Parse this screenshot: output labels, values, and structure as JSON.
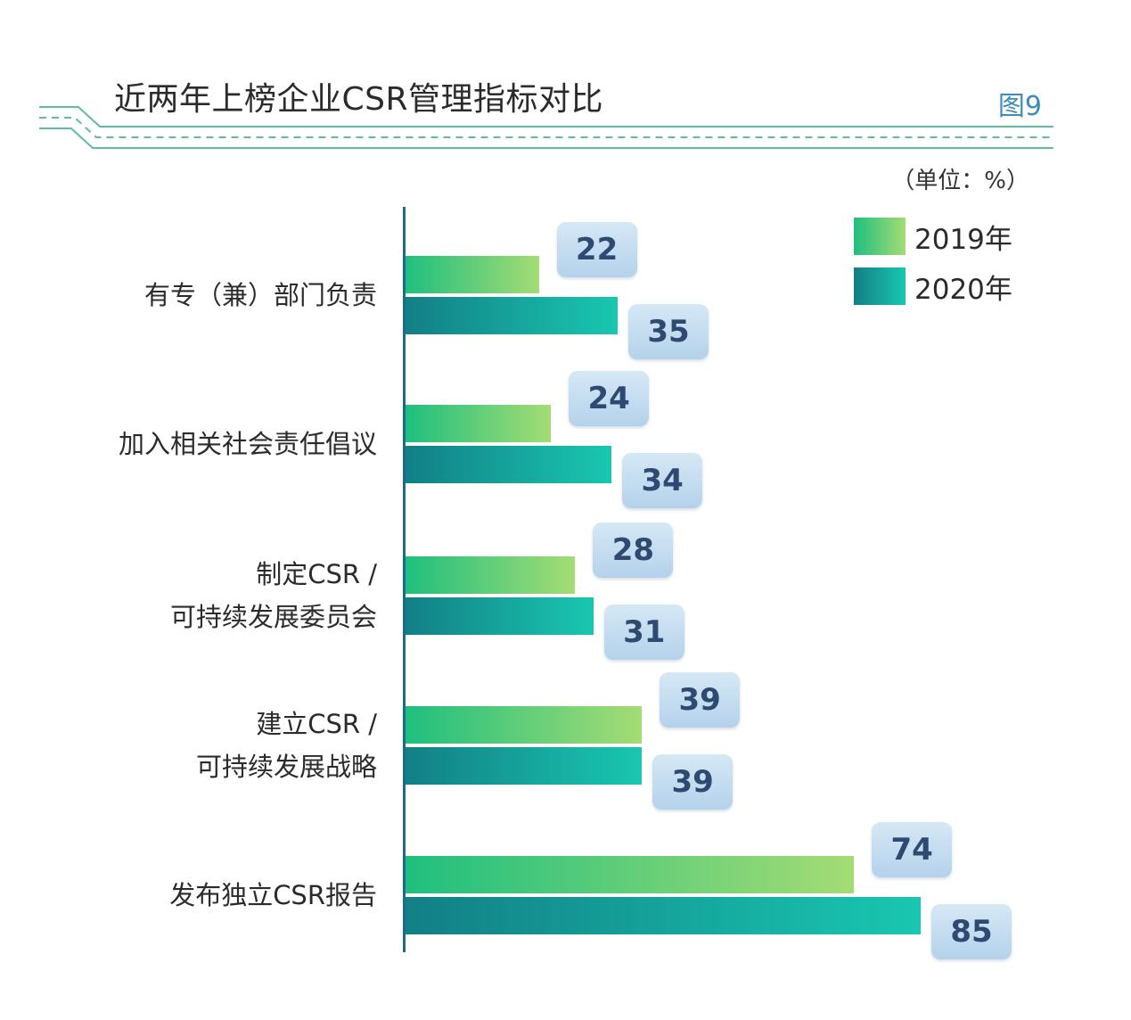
{
  "header": {
    "title": "近两年上榜企业CSR管理指标对比",
    "figure_no": "图9",
    "unit": "（单位：%）"
  },
  "colors": {
    "s2019_start": "#1fbf7f",
    "s2019_end": "#a4dc74",
    "s2020_start": "#127f86",
    "s2020_end": "#19c7b0",
    "badge": "#c3dcf0",
    "badge_text": "#2e4a72",
    "axis": "#1f6a84",
    "decor": "#5cbf9a"
  },
  "chart_data": {
    "type": "bar",
    "orientation": "horizontal",
    "title": "近两年上榜企业CSR管理指标对比",
    "unit": "%",
    "categories": [
      [
        "有专（兼）部门负责"
      ],
      [
        "加入相关社会责任倡议"
      ],
      [
        "制定CSR /",
        "可持续发展委员会"
      ],
      [
        "建立CSR /",
        "可持续发展战略"
      ],
      [
        "发布独立CSR报告"
      ]
    ],
    "series": [
      {
        "name": "2019年",
        "values": [
          22,
          24,
          28,
          39,
          74
        ]
      },
      {
        "name": "2020年",
        "values": [
          35,
          34,
          31,
          39,
          85
        ]
      }
    ],
    "xlim": [
      0,
      100
    ],
    "grid": false,
    "legend_position": "top-right"
  }
}
